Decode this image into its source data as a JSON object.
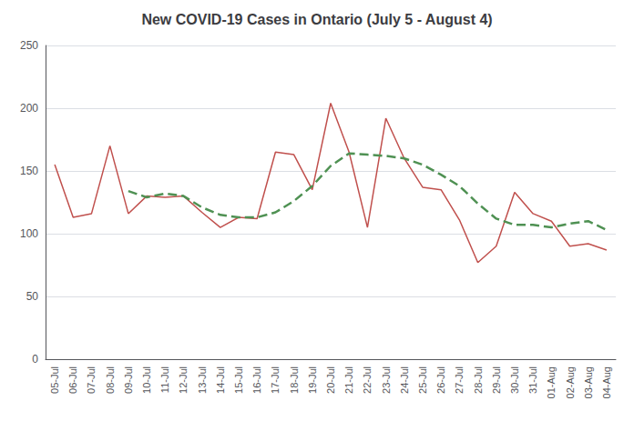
{
  "chart_data": {
    "type": "line",
    "title": "New COVID-19 Cases in Ontario (July 5 - August 4)",
    "categories": [
      "05-Jul",
      "06-Jul",
      "07-Jul",
      "08-Jul",
      "09-Jul",
      "10-Jul",
      "11-Jul",
      "12-Jul",
      "13-Jul",
      "14-Jul",
      "15-Jul",
      "16-Jul",
      "17-Jul",
      "18-Jul",
      "19-Jul",
      "20-Jul",
      "21-Jul",
      "22-Jul",
      "23-Jul",
      "24-Jul",
      "25-Jul",
      "26-Jul",
      "27-Jul",
      "28-Jul",
      "29-Jul",
      "30-Jul",
      "31-Jul",
      "01-Aug",
      "02-Aug",
      "03-Aug",
      "04-Aug"
    ],
    "series": [
      {
        "color": "#C0504D",
        "line_style": "solid",
        "values": [
          155,
          113,
          116,
          170,
          116,
          130,
          129,
          130,
          117,
          105,
          113,
          112,
          165,
          163,
          135,
          204,
          165,
          105,
          192,
          160,
          137,
          135,
          111,
          77,
          90,
          133,
          116,
          110,
          90,
          92,
          87
        ]
      },
      {
        "color": "#4F9153",
        "line_style": "dashed",
        "values": [
          null,
          null,
          null,
          null,
          134,
          129,
          132,
          130,
          121,
          115,
          113,
          113,
          117,
          126,
          138,
          154,
          164,
          163,
          162,
          160,
          155,
          147,
          138,
          124,
          112,
          107,
          107,
          105,
          108,
          110,
          103
        ]
      }
    ],
    "ylim": [
      0,
      250
    ],
    "yticks": [
      0,
      50,
      100,
      150,
      200,
      250
    ],
    "grid": true
  }
}
